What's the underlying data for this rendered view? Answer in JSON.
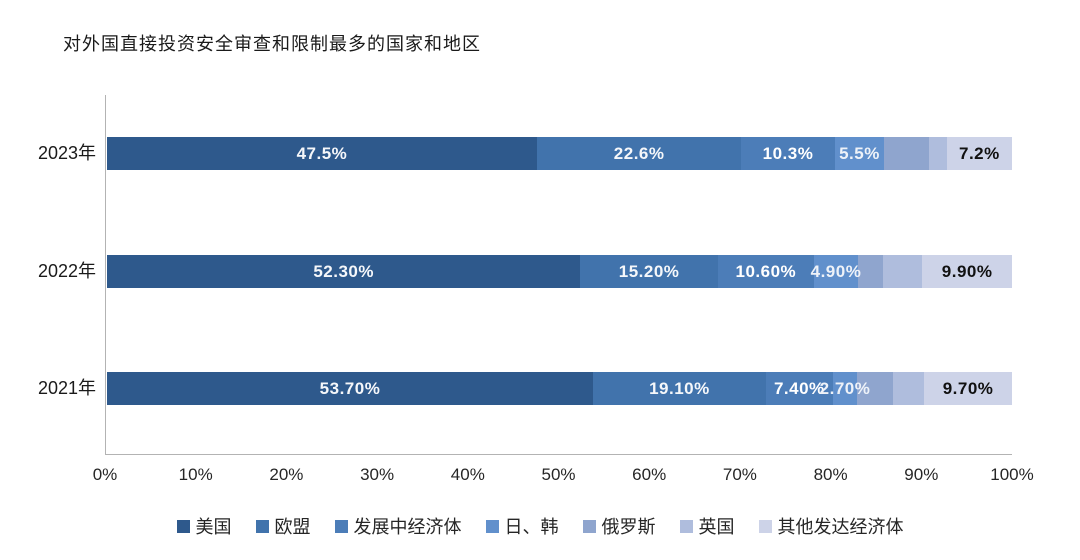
{
  "chart_data": {
    "type": "bar",
    "stacked": true,
    "orientation": "horizontal",
    "title": "对外国直接投资安全审查和限制最多的国家和地区",
    "categories": [
      "2023年",
      "2022年",
      "2021年"
    ],
    "series": [
      {
        "name": "美国",
        "color": "#2E598C",
        "values": [
          47.5,
          52.3,
          53.7
        ],
        "labels": [
          "47.5%",
          "52.30%",
          "53.70%"
        ],
        "label_color": "#f5f7fa"
      },
      {
        "name": "欧盟",
        "color": "#4173AC",
        "values": [
          22.6,
          15.2,
          19.1
        ],
        "labels": [
          "22.6%",
          "15.20%",
          "19.10%"
        ],
        "label_color": "#f5f7fa"
      },
      {
        "name": "发展中经济体",
        "color": "#4C7DB8",
        "values": [
          10.3,
          10.6,
          7.4
        ],
        "labels": [
          "10.3%",
          "10.60%",
          "7.40%"
        ],
        "label_color": "#ffffff"
      },
      {
        "name": "日、韩",
        "color": "#6190CC",
        "values": [
          5.5,
          4.9,
          2.7
        ],
        "labels": [
          "5.5%",
          "4.90%",
          "2.70%"
        ],
        "label_color": "#eef2f8"
      },
      {
        "name": "俄罗斯",
        "color": "#8FA5CE",
        "values": [
          4.9,
          2.8,
          3.9
        ],
        "labels": [
          "",
          "",
          ""
        ],
        "label_color": "#ffffff"
      },
      {
        "name": "英国",
        "color": "#AFBDDD",
        "values": [
          2.0,
          4.3,
          3.5
        ],
        "labels": [
          "",
          "",
          ""
        ],
        "label_color": "#ffffff"
      },
      {
        "name": "其他发达经济体",
        "color": "#CDD3E8",
        "values": [
          7.2,
          9.9,
          9.7
        ],
        "labels": [
          "7.2%",
          "9.90%",
          "9.70%"
        ],
        "label_color": "#111111"
      }
    ],
    "x_ticks": [
      "0%",
      "10%",
      "20%",
      "30%",
      "40%",
      "50%",
      "60%",
      "70%",
      "80%",
      "90%",
      "100%"
    ],
    "xlim": [
      0,
      100
    ],
    "grid": false,
    "legend_position": "bottom"
  }
}
